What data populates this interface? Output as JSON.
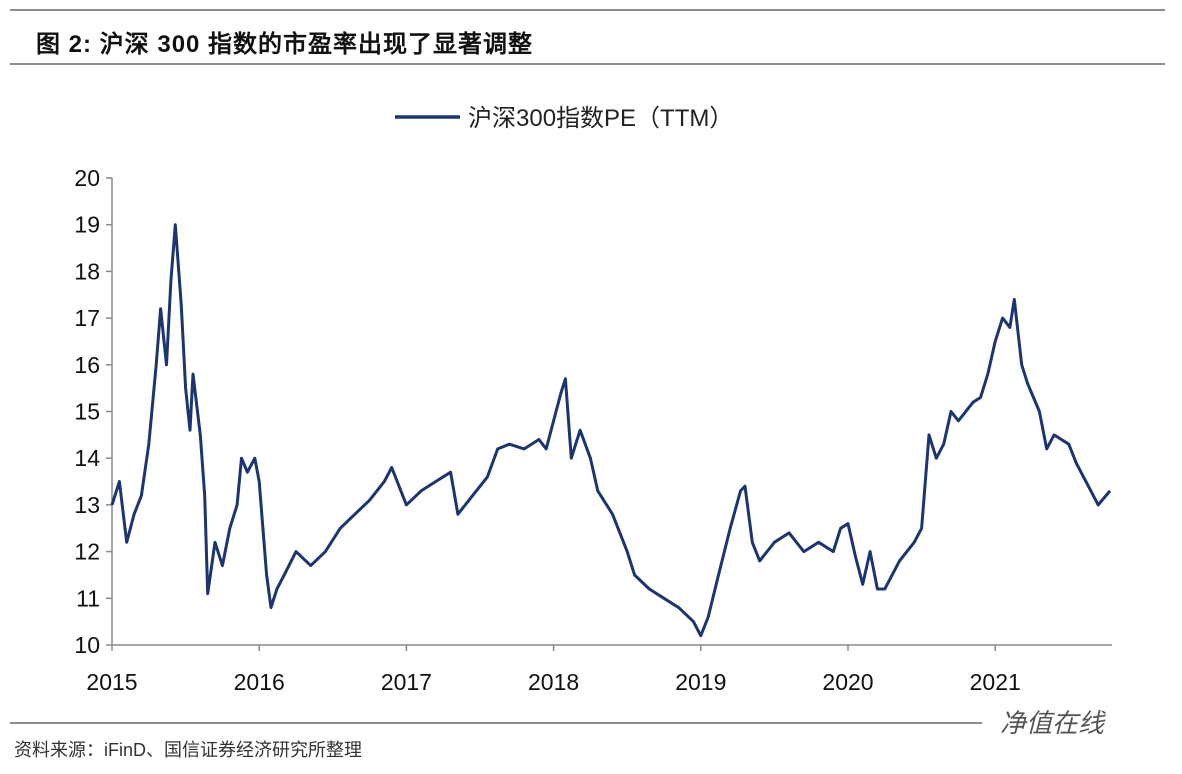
{
  "title": "图 2: 沪深 300 指数的市盈率出现了显著调整",
  "source": "资料来源：iFinD、国信证券经济研究所整理",
  "watermark": "净值在线",
  "chart_data": {
    "type": "line",
    "title": "",
    "xlabel": "",
    "ylabel": "",
    "xlim": [
      2015,
      2021.8
    ],
    "ylim": [
      10,
      20
    ],
    "x_ticks": [
      "2015",
      "2016",
      "2017",
      "2018",
      "2019",
      "2020",
      "2021"
    ],
    "y_ticks": [
      "10",
      "11",
      "12",
      "13",
      "14",
      "15",
      "16",
      "17",
      "18",
      "19",
      "20"
    ],
    "grid": false,
    "legend_position": "top-center",
    "series_color": "#1c3570",
    "series": [
      {
        "name": "沪深300指数PE（TTM）",
        "x": [
          2015.0,
          2015.05,
          2015.1,
          2015.15,
          2015.2,
          2015.25,
          2015.3,
          2015.33,
          2015.37,
          2015.4,
          2015.43,
          2015.47,
          2015.5,
          2015.53,
          2015.55,
          2015.6,
          2015.63,
          2015.65,
          2015.7,
          2015.75,
          2015.8,
          2015.85,
          2015.88,
          2015.92,
          2015.97,
          2016.0,
          2016.05,
          2016.08,
          2016.12,
          2016.17,
          2016.25,
          2016.35,
          2016.45,
          2016.55,
          2016.65,
          2016.75,
          2016.85,
          2016.9,
          2017.0,
          2017.1,
          2017.2,
          2017.3,
          2017.35,
          2017.45,
          2017.55,
          2017.62,
          2017.7,
          2017.8,
          2017.9,
          2017.95,
          2018.0,
          2018.05,
          2018.08,
          2018.12,
          2018.18,
          2018.25,
          2018.3,
          2018.4,
          2018.5,
          2018.55,
          2018.65,
          2018.75,
          2018.85,
          2018.95,
          2019.0,
          2019.05,
          2019.12,
          2019.2,
          2019.27,
          2019.3,
          2019.35,
          2019.4,
          2019.5,
          2019.6,
          2019.7,
          2019.8,
          2019.9,
          2019.95,
          2020.0,
          2020.05,
          2020.1,
          2020.15,
          2020.2,
          2020.25,
          2020.35,
          2020.45,
          2020.5,
          2020.55,
          2020.6,
          2020.65,
          2020.7,
          2020.75,
          2020.85,
          2020.9,
          2020.95,
          2021.0,
          2021.05,
          2021.1,
          2021.13,
          2021.18,
          2021.22,
          2021.3,
          2021.35,
          2021.4,
          2021.5,
          2021.55,
          2021.6,
          2021.65,
          2021.7,
          2021.78
        ],
        "values": [
          13.0,
          13.5,
          12.2,
          12.8,
          13.2,
          14.3,
          16.0,
          17.2,
          16.0,
          17.8,
          19.0,
          17.3,
          15.5,
          14.6,
          15.8,
          14.5,
          13.2,
          11.1,
          12.2,
          11.7,
          12.5,
          13.0,
          14.0,
          13.7,
          14.0,
          13.5,
          11.5,
          10.8,
          11.2,
          11.5,
          12.0,
          11.7,
          12.0,
          12.5,
          12.8,
          13.1,
          13.5,
          13.8,
          13.0,
          13.3,
          13.5,
          13.7,
          12.8,
          13.2,
          13.6,
          14.2,
          14.3,
          14.2,
          14.4,
          14.2,
          14.8,
          15.4,
          15.7,
          14.0,
          14.6,
          14.0,
          13.3,
          12.8,
          12.0,
          11.5,
          11.2,
          11.0,
          10.8,
          10.5,
          10.2,
          10.6,
          11.5,
          12.5,
          13.3,
          13.4,
          12.2,
          11.8,
          12.2,
          12.4,
          12.0,
          12.2,
          12.0,
          12.5,
          12.6,
          11.9,
          11.3,
          12.0,
          11.2,
          11.2,
          11.8,
          12.2,
          12.5,
          14.5,
          14.0,
          14.3,
          15.0,
          14.8,
          15.2,
          15.3,
          15.8,
          16.5,
          17.0,
          16.8,
          17.4,
          16.0,
          15.6,
          15.0,
          14.2,
          14.5,
          14.3,
          13.9,
          13.6,
          13.3,
          13.0,
          13.3
        ]
      }
    ]
  }
}
